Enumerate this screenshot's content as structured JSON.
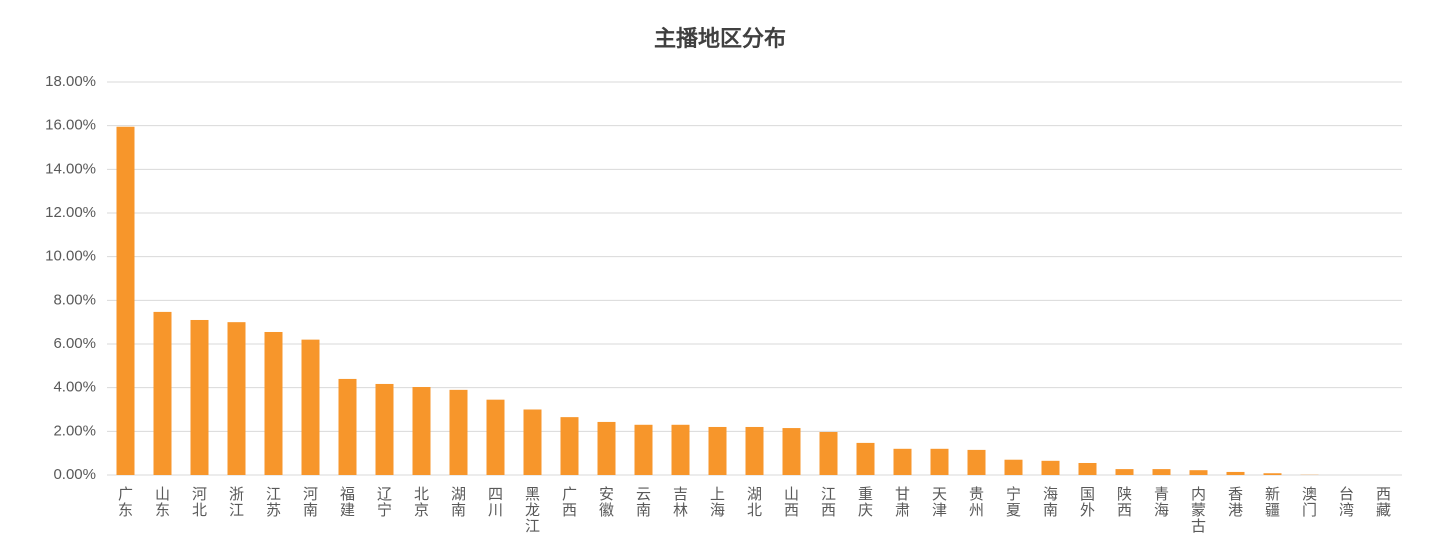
{
  "chart_data": {
    "type": "bar",
    "title": "主播地区分布",
    "categories": [
      "广东",
      "山东",
      "河北",
      "浙江",
      "江苏",
      "河南",
      "福建",
      "辽宁",
      "北京",
      "湖南",
      "四川",
      "黑龙江",
      "广西",
      "安徽",
      "云南",
      "吉林",
      "上海",
      "湖北",
      "山西",
      "江西",
      "重庆",
      "甘肃",
      "天津",
      "贵州",
      "宁夏",
      "海南",
      "国外",
      "陕西",
      "青海",
      "内蒙古",
      "香港",
      "新疆",
      "澳门",
      "台湾",
      "西藏"
    ],
    "values": [
      15.95,
      7.47,
      7.1,
      7.0,
      6.55,
      6.2,
      4.4,
      4.17,
      4.03,
      3.9,
      3.45,
      3.0,
      2.65,
      2.43,
      2.3,
      2.3,
      2.2,
      2.2,
      2.15,
      1.97,
      1.47,
      1.2,
      1.2,
      1.15,
      0.7,
      0.65,
      0.55,
      0.27,
      0.27,
      0.22,
      0.14,
      0.08,
      0.01,
      0,
      0
    ],
    "color": "#f7962b",
    "ylim": [
      0,
      18
    ],
    "yticks": [
      {
        "value": 0,
        "label": "0.00%"
      },
      {
        "value": 2,
        "label": "2.00%"
      },
      {
        "value": 4,
        "label": "4.00%"
      },
      {
        "value": 6,
        "label": "6.00%"
      },
      {
        "value": 8,
        "label": "8.00%"
      },
      {
        "value": 10,
        "label": "10.00%"
      },
      {
        "value": 12,
        "label": "12.00%"
      },
      {
        "value": 14,
        "label": "14.00%"
      },
      {
        "value": 16,
        "label": "16.00%"
      },
      {
        "value": 18,
        "label": "18.00%"
      }
    ],
    "grid": true
  }
}
